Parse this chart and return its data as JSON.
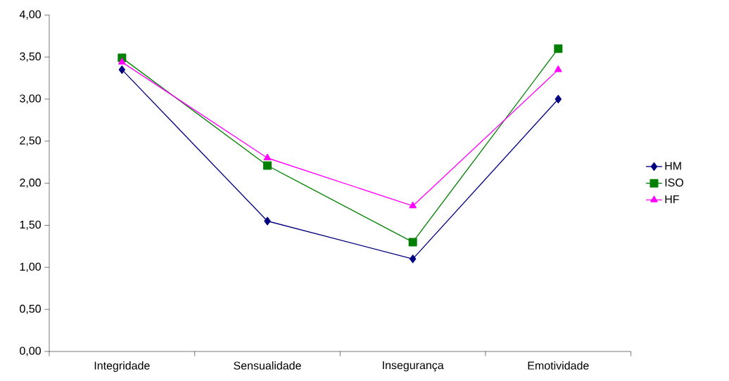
{
  "chart_data": {
    "type": "line",
    "categories": [
      "Integridade",
      "Sensualidade",
      "Insegurança",
      "Emotividade"
    ],
    "series": [
      {
        "name": "HM",
        "color": "#000080",
        "marker": "diamond",
        "values": [
          3.35,
          1.55,
          1.1,
          3.0
        ]
      },
      {
        "name": "ISO",
        "color": "#008000",
        "marker": "square",
        "values": [
          3.49,
          2.21,
          1.3,
          3.6
        ]
      },
      {
        "name": "HF",
        "color": "#ff00ff",
        "marker": "triangle",
        "values": [
          3.44,
          2.3,
          1.73,
          3.35
        ]
      }
    ],
    "ylim": [
      0,
      4
    ],
    "yticks": [
      {
        "value": 0,
        "label": "0,00"
      },
      {
        "value": 0.5,
        "label": "0,50"
      },
      {
        "value": 1,
        "label": "1,00"
      },
      {
        "value": 1.5,
        "label": "1,50"
      },
      {
        "value": 2,
        "label": "2,00"
      },
      {
        "value": 2.5,
        "label": "2,50"
      },
      {
        "value": 3,
        "label": "3,00"
      },
      {
        "value": 3.5,
        "label": "3,50"
      },
      {
        "value": 4,
        "label": "4,00"
      }
    ],
    "grid": false,
    "legend": "right",
    "line_style": "solid"
  }
}
